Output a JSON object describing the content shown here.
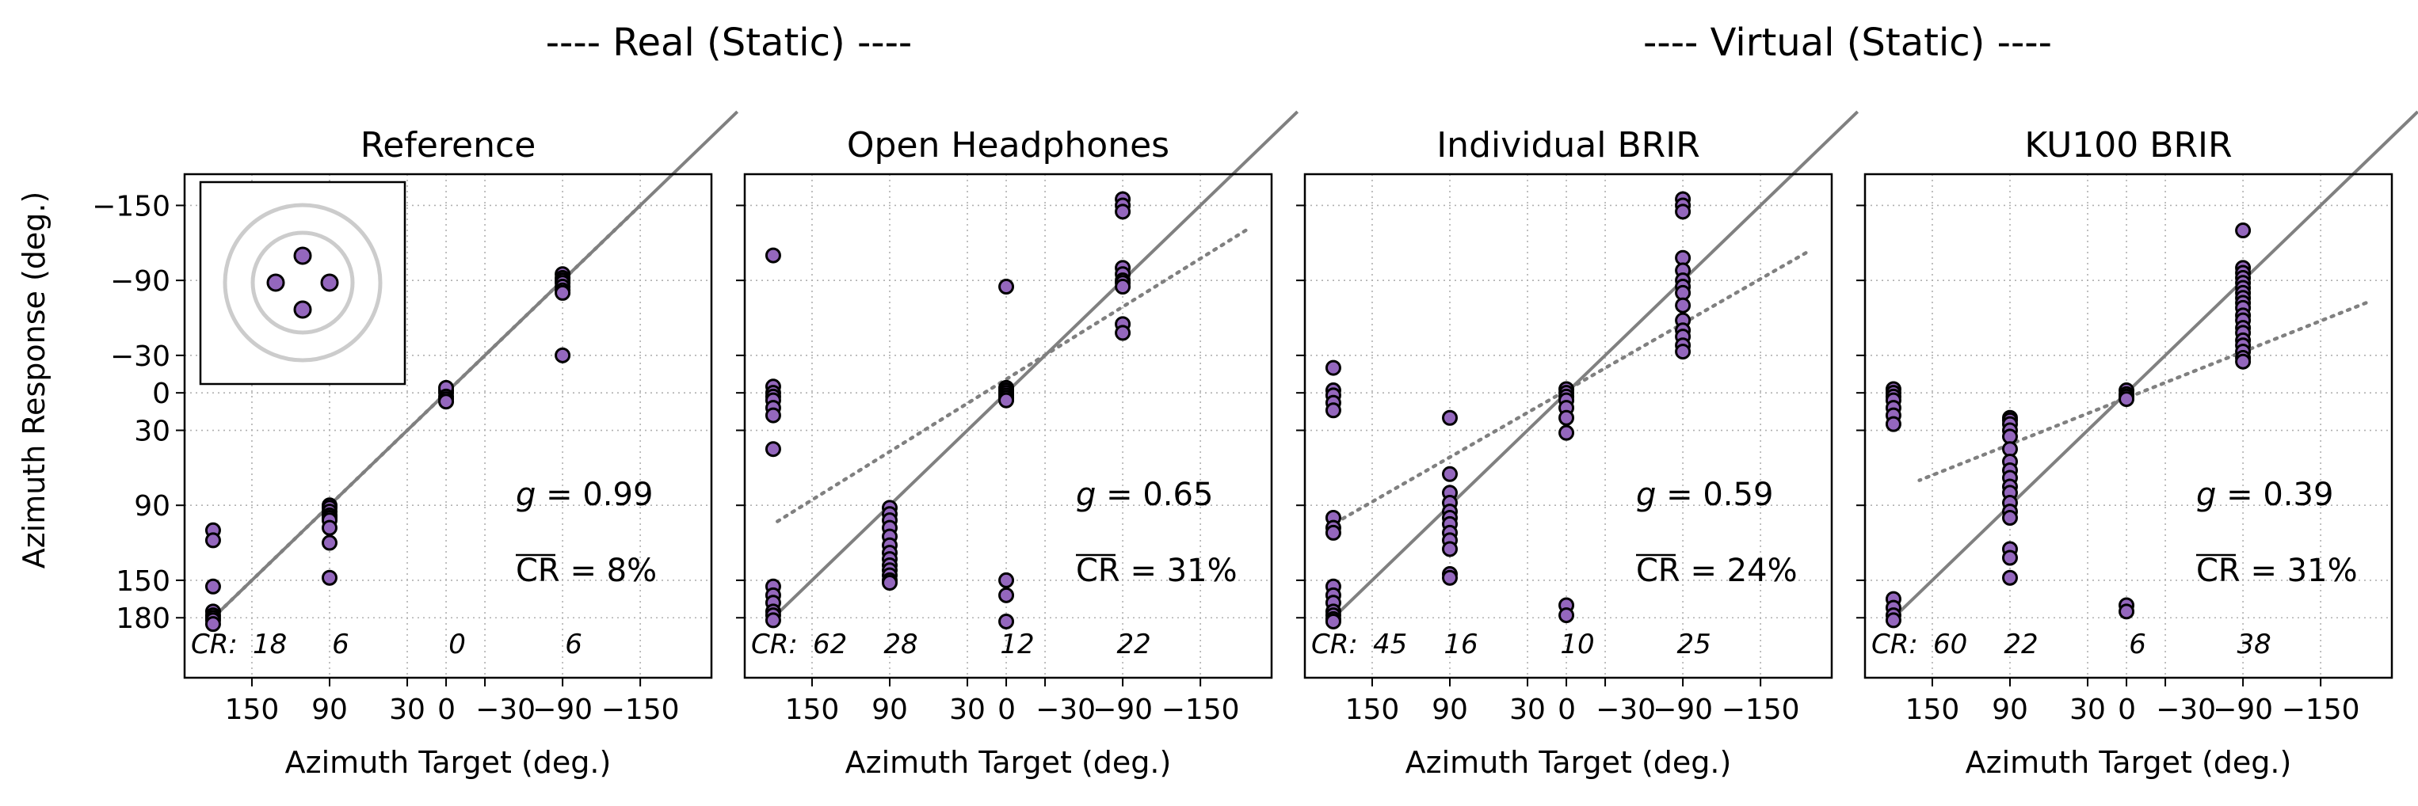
{
  "groups": [
    {
      "title": "---- Real (Static) ----"
    },
    {
      "title": "---- Virtual (Static) ----"
    }
  ],
  "shared": {
    "xlabel": "Azimuth Target (deg.)",
    "ylabel": "Azimuth Response (deg.)",
    "x_ticks": [
      {
        "v": 150,
        "label": "150"
      },
      {
        "v": 90,
        "label": "90"
      },
      {
        "v": 30,
        "label": "30"
      },
      {
        "v": 0,
        "label": "0"
      },
      {
        "v": -30,
        "label": "−30"
      },
      {
        "v": -90,
        "label": "−90"
      },
      {
        "v": -150,
        "label": "−150"
      }
    ],
    "y_ticks": [
      {
        "v": -150,
        "label": "−150"
      },
      {
        "v": -90,
        "label": "−90"
      },
      {
        "v": -30,
        "label": "−30"
      },
      {
        "v": 0,
        "label": "0"
      },
      {
        "v": 30,
        "label": "30"
      },
      {
        "v": 90,
        "label": "90"
      },
      {
        "v": 150,
        "label": "150"
      },
      {
        "v": 180,
        "label": "180"
      }
    ],
    "cr_prefix": "CR:",
    "point_color": "#9467bd",
    "identity_color": "#808080",
    "fit_color": "#808080"
  },
  "chart_data": [
    {
      "type": "scatter",
      "title": "Reference",
      "xlim": [
        -205,
        202
      ],
      "ylim": [
        -175,
        228
      ],
      "g_label": "g = 0.99",
      "cr_label": "CR = 8%",
      "cr_counts": [
        {
          "x": 180,
          "label": "18"
        },
        {
          "x": 90,
          "label": "6"
        },
        {
          "x": 0,
          "label": "0"
        },
        {
          "x": -90,
          "label": "6"
        }
      ],
      "fit": {
        "x": [
          -150,
          180
        ],
        "y": [
          -150,
          180
        ]
      },
      "inset": true,
      "points": [
        [
          180,
          110
        ],
        [
          180,
          118
        ],
        [
          180,
          155
        ],
        [
          180,
          175
        ],
        [
          180,
          178
        ],
        [
          180,
          180
        ],
        [
          180,
          182
        ],
        [
          180,
          185
        ],
        [
          90,
          90
        ],
        [
          90,
          92
        ],
        [
          90,
          95
        ],
        [
          90,
          98
        ],
        [
          90,
          100
        ],
        [
          90,
          102
        ],
        [
          90,
          108
        ],
        [
          90,
          120
        ],
        [
          90,
          148
        ],
        [
          0,
          0
        ],
        [
          0,
          -2
        ],
        [
          0,
          -4
        ],
        [
          0,
          3
        ],
        [
          0,
          5
        ],
        [
          0,
          7
        ],
        [
          -90,
          -95
        ],
        [
          -90,
          -92
        ],
        [
          -90,
          -90
        ],
        [
          -90,
          -88
        ],
        [
          -90,
          -85
        ],
        [
          -90,
          -82
        ],
        [
          -90,
          -80
        ],
        [
          -90,
          -30
        ]
      ]
    },
    {
      "type": "scatter",
      "title": "Open Headphones",
      "xlim": [
        -205,
        202
      ],
      "ylim": [
        -175,
        228
      ],
      "g_label": "g = 0.65",
      "cr_label": "CR = 31%",
      "cr_counts": [
        {
          "x": 180,
          "label": "62"
        },
        {
          "x": 90,
          "label": "28"
        },
        {
          "x": 0,
          "label": "12"
        },
        {
          "x": -90,
          "label": "22"
        }
      ],
      "fit": {
        "x": [
          -185,
          180
        ],
        "y": [
          -130,
          105
        ]
      },
      "points": [
        [
          180,
          -110
        ],
        [
          180,
          -5
        ],
        [
          180,
          0
        ],
        [
          180,
          3
        ],
        [
          180,
          6
        ],
        [
          180,
          12
        ],
        [
          180,
          18
        ],
        [
          180,
          45
        ],
        [
          180,
          155
        ],
        [
          180,
          162
        ],
        [
          180,
          168
        ],
        [
          180,
          175
        ],
        [
          180,
          178
        ],
        [
          180,
          182
        ],
        [
          90,
          92
        ],
        [
          90,
          97
        ],
        [
          90,
          102
        ],
        [
          90,
          108
        ],
        [
          90,
          115
        ],
        [
          90,
          122
        ],
        [
          90,
          128
        ],
        [
          90,
          133
        ],
        [
          90,
          138
        ],
        [
          90,
          142
        ],
        [
          90,
          146
        ],
        [
          90,
          150
        ],
        [
          90,
          152
        ],
        [
          0,
          -85
        ],
        [
          0,
          -4
        ],
        [
          0,
          -2
        ],
        [
          0,
          0
        ],
        [
          0,
          2
        ],
        [
          0,
          4
        ],
        [
          0,
          6
        ],
        [
          0,
          150
        ],
        [
          0,
          162
        ],
        [
          0,
          183
        ],
        [
          -90,
          -155
        ],
        [
          -90,
          -150
        ],
        [
          -90,
          -145
        ],
        [
          -90,
          -100
        ],
        [
          -90,
          -95
        ],
        [
          -90,
          -90
        ],
        [
          -90,
          -88
        ],
        [
          -90,
          -85
        ],
        [
          -90,
          -55
        ],
        [
          -90,
          -48
        ]
      ]
    },
    {
      "type": "scatter",
      "title": "Individual BRIR",
      "xlim": [
        -205,
        202
      ],
      "ylim": [
        -175,
        228
      ],
      "g_label": "g = 0.59",
      "cr_label": "CR = 24%",
      "cr_counts": [
        {
          "x": 180,
          "label": "45"
        },
        {
          "x": 90,
          "label": "16"
        },
        {
          "x": 0,
          "label": "10"
        },
        {
          "x": -90,
          "label": "25"
        }
      ],
      "fit": {
        "x": [
          -185,
          180
        ],
        "y": [
          -112,
          105
        ]
      },
      "points": [
        [
          180,
          -20
        ],
        [
          180,
          -2
        ],
        [
          180,
          2
        ],
        [
          180,
          8
        ],
        [
          180,
          14
        ],
        [
          180,
          100
        ],
        [
          180,
          108
        ],
        [
          180,
          112
        ],
        [
          180,
          155
        ],
        [
          180,
          162
        ],
        [
          180,
          168
        ],
        [
          180,
          175
        ],
        [
          180,
          178
        ],
        [
          180,
          181
        ],
        [
          180,
          183
        ],
        [
          90,
          20
        ],
        [
          90,
          65
        ],
        [
          90,
          80
        ],
        [
          90,
          88
        ],
        [
          90,
          95
        ],
        [
          90,
          100
        ],
        [
          90,
          105
        ],
        [
          90,
          112
        ],
        [
          90,
          118
        ],
        [
          90,
          125
        ],
        [
          90,
          145
        ],
        [
          90,
          148
        ],
        [
          0,
          -3
        ],
        [
          0,
          0
        ],
        [
          0,
          3
        ],
        [
          0,
          6
        ],
        [
          0,
          12
        ],
        [
          0,
          20
        ],
        [
          0,
          32
        ],
        [
          0,
          170
        ],
        [
          0,
          178
        ],
        [
          -90,
          -155
        ],
        [
          -90,
          -150
        ],
        [
          -90,
          -145
        ],
        [
          -90,
          -108
        ],
        [
          -90,
          -98
        ],
        [
          -90,
          -90
        ],
        [
          -90,
          -85
        ],
        [
          -90,
          -80
        ],
        [
          -90,
          -70
        ],
        [
          -90,
          -58
        ],
        [
          -90,
          -50
        ],
        [
          -90,
          -45
        ],
        [
          -90,
          -38
        ],
        [
          -90,
          -33
        ]
      ]
    },
    {
      "type": "scatter",
      "title": "KU100 BRIR",
      "xlim": [
        -205,
        202
      ],
      "ylim": [
        -175,
        228
      ],
      "g_label": "g = 0.39",
      "cr_label": "CR = 31%",
      "cr_counts": [
        {
          "x": 180,
          "label": "60"
        },
        {
          "x": 90,
          "label": "22"
        },
        {
          "x": 0,
          "label": "6"
        },
        {
          "x": -90,
          "label": "38"
        }
      ],
      "fit": {
        "x": [
          -185,
          160
        ],
        "y": [
          -72,
          70
        ]
      },
      "points": [
        [
          180,
          -3
        ],
        [
          180,
          0
        ],
        [
          180,
          3
        ],
        [
          180,
          6
        ],
        [
          180,
          12
        ],
        [
          180,
          18
        ],
        [
          180,
          25
        ],
        [
          180,
          165
        ],
        [
          180,
          172
        ],
        [
          180,
          178
        ],
        [
          180,
          182
        ],
        [
          90,
          20
        ],
        [
          90,
          22
        ],
        [
          90,
          25
        ],
        [
          90,
          30
        ],
        [
          90,
          35
        ],
        [
          90,
          45
        ],
        [
          90,
          55
        ],
        [
          90,
          62
        ],
        [
          90,
          68
        ],
        [
          90,
          75
        ],
        [
          90,
          80
        ],
        [
          90,
          88
        ],
        [
          90,
          95
        ],
        [
          90,
          100
        ],
        [
          90,
          125
        ],
        [
          90,
          132
        ],
        [
          90,
          148
        ],
        [
          0,
          -2
        ],
        [
          0,
          1
        ],
        [
          0,
          3
        ],
        [
          0,
          5
        ],
        [
          0,
          170
        ],
        [
          0,
          175
        ],
        [
          -90,
          -130
        ],
        [
          -90,
          -100
        ],
        [
          -90,
          -96
        ],
        [
          -90,
          -92
        ],
        [
          -90,
          -88
        ],
        [
          -90,
          -84
        ],
        [
          -90,
          -80
        ],
        [
          -90,
          -76
        ],
        [
          -90,
          -72
        ],
        [
          -90,
          -68
        ],
        [
          -90,
          -62
        ],
        [
          -90,
          -58
        ],
        [
          -90,
          -52
        ],
        [
          -90,
          -48
        ],
        [
          -90,
          -42
        ],
        [
          -90,
          -38
        ],
        [
          -90,
          -33
        ],
        [
          -90,
          -28
        ],
        [
          -90,
          -25
        ]
      ]
    }
  ]
}
